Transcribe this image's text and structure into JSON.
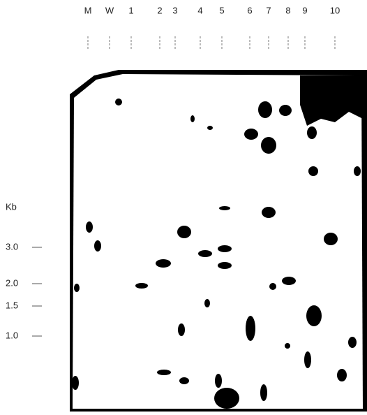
{
  "lanes": [
    "M",
    "W",
    "1",
    "2",
    "3",
    "4",
    "5",
    "6",
    "7",
    "8",
    "9",
    "10"
  ],
  "size_axis": {
    "unit": "Kb",
    "markers": [
      "3.0",
      "2.0",
      "1.5",
      "1.0"
    ]
  }
}
